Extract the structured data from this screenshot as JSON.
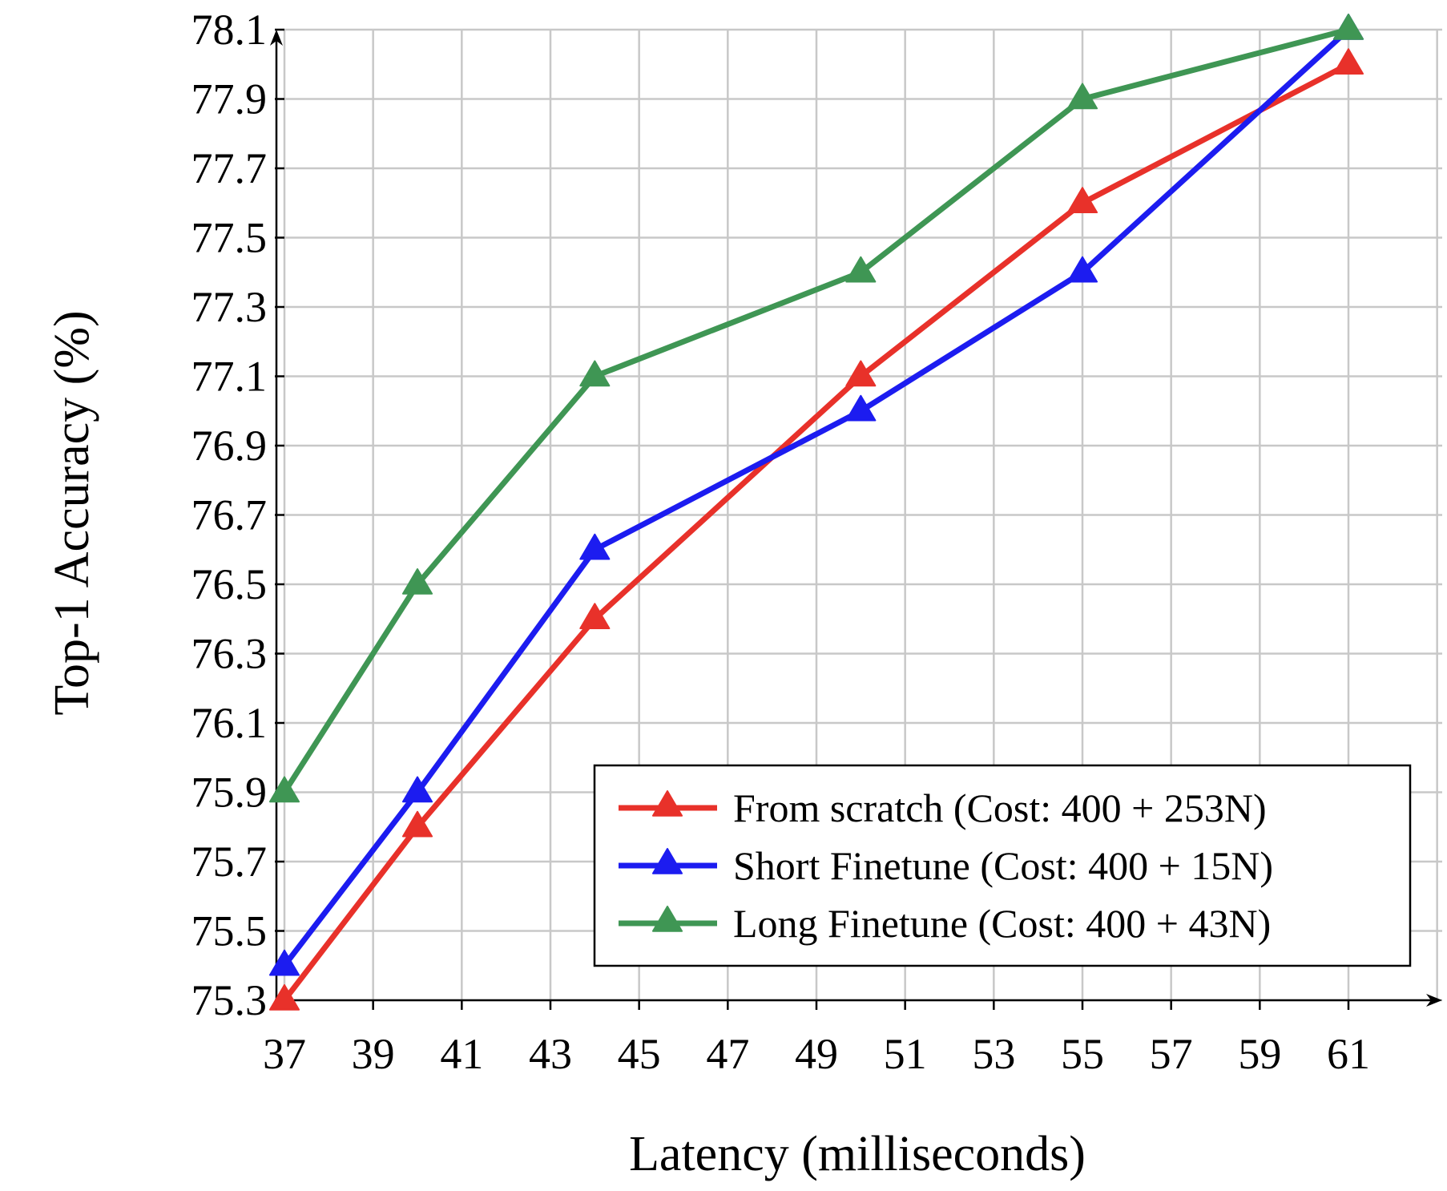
{
  "chart_data": {
    "type": "line",
    "xlabel": "Latency (milliseconds)",
    "ylabel": "Top-1 Accuracy (%)",
    "xlim": [
      37,
      63
    ],
    "ylim": [
      75.3,
      78.1
    ],
    "xticks": [
      "37",
      "39",
      "41",
      "43",
      "45",
      "47",
      "49",
      "51",
      "53",
      "55",
      "57",
      "59",
      "61"
    ],
    "yticks": [
      "75.3",
      "75.5",
      "75.7",
      "75.9",
      "76.1",
      "76.3",
      "76.5",
      "76.7",
      "76.9",
      "77.1",
      "77.3",
      "77.5",
      "77.7",
      "77.9",
      "78.1"
    ],
    "grid": true,
    "legend_position": "bottom-right",
    "marker": "triangle",
    "series": [
      {
        "name": "From scratch (Cost: 400 + 253N)",
        "color": "#e8312a",
        "x": [
          37,
          40,
          44,
          50,
          55,
          61
        ],
        "y": [
          75.3,
          75.8,
          76.4,
          77.1,
          77.6,
          78.0
        ]
      },
      {
        "name": "Short Finetune (Cost: 400 + 15N)",
        "color": "#1c1cf0",
        "x": [
          37,
          40,
          44,
          50,
          55,
          61
        ],
        "y": [
          75.4,
          75.9,
          76.6,
          77.0,
          77.4,
          78.1
        ]
      },
      {
        "name": "Long Finetune (Cost: 400 + 43N)",
        "color": "#3f9654",
        "x": [
          37,
          40,
          44,
          50,
          55,
          61
        ],
        "y": [
          75.9,
          76.5,
          77.1,
          77.4,
          77.9,
          78.1
        ]
      }
    ]
  }
}
